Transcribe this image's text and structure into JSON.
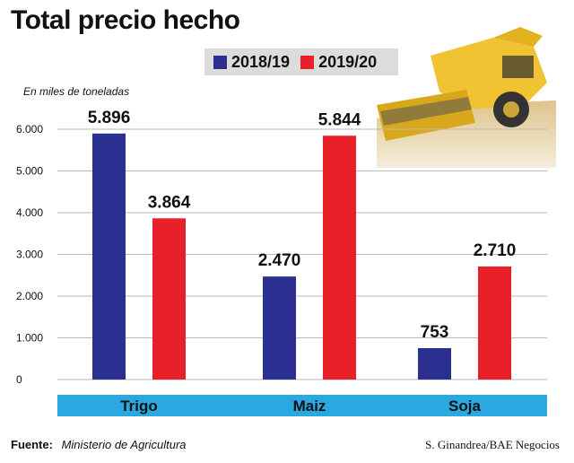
{
  "title": "Total precio hecho",
  "unit_note": "En miles de toneladas",
  "legend": [
    {
      "label": "2018/19",
      "color": "#2b2f8f"
    },
    {
      "label": "2019/20",
      "color": "#e8202a"
    }
  ],
  "chart_data": {
    "type": "bar",
    "categories": [
      "Trigo",
      "Maiz",
      "Soja"
    ],
    "series": [
      {
        "name": "2018/19",
        "values": [
          5896,
          2470,
          753
        ],
        "labels": [
          "5.896",
          "2.470",
          "753"
        ]
      },
      {
        "name": "2019/20",
        "values": [
          3864,
          5844,
          2710
        ],
        "labels": [
          "3.864",
          "5.844",
          "2.710"
        ]
      }
    ],
    "yticks": [
      0,
      1000,
      2000,
      3000,
      4000,
      5000,
      6000
    ],
    "yticklabels": [
      "0",
      "1.000",
      "2.000",
      "3.000",
      "4.000",
      "5.000",
      "6.000"
    ],
    "ylim": [
      0,
      6000
    ],
    "grid": true,
    "category_bar_color": "#2aa9e0"
  },
  "footer": {
    "source_label": "Fuente:",
    "source_text": "Ministerio de Agricultura",
    "credit": "S. Ginandrea/BAE Negocios"
  },
  "photo_icon": "combine-harvester-photo"
}
